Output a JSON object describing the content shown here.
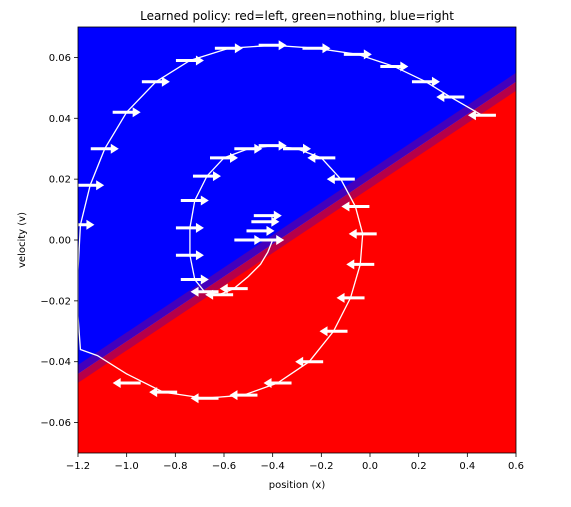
{
  "chart_data": {
    "type": "heatmap",
    "title": "Learned policy: red=left, green=nothing, blue=right",
    "xlabel": "position (x)",
    "ylabel": "velocity (v)",
    "xlim": [
      -1.2,
      0.6
    ],
    "ylim": [
      -0.07,
      0.07
    ],
    "x_ticks": [
      "−1.2",
      "−1.0",
      "−0.8",
      "−0.6",
      "−0.4",
      "−0.2",
      "0.0",
      "0.2",
      "0.4",
      "0.6"
    ],
    "y_ticks": [
      "−0.06",
      "−0.04",
      "−0.02",
      "0.00",
      "0.02",
      "0.04",
      "0.06"
    ],
    "grid": false,
    "colors": {
      "left": "#ff0000",
      "nothing": "#00ff00",
      "right": "#0000ff",
      "trajectory": "#ffffff"
    },
    "decision_boundary": {
      "description_points": [
        [
          -1.2,
          -0.044
        ],
        [
          0.6,
          0.052
        ]
      ],
      "left_action_region": "below",
      "right_action_region": "above"
    },
    "trajectory": [
      [
        -0.4,
        0.0
      ],
      [
        -0.42,
        -0.004
      ],
      [
        -0.45,
        -0.008
      ],
      [
        -0.5,
        -0.012
      ],
      [
        -0.56,
        -0.016
      ],
      [
        -0.62,
        -0.018
      ],
      [
        -0.68,
        -0.017
      ],
      [
        -0.72,
        -0.013
      ],
      [
        -0.74,
        -0.005
      ],
      [
        -0.74,
        0.004
      ],
      [
        -0.72,
        0.013
      ],
      [
        -0.67,
        0.021
      ],
      [
        -0.6,
        0.027
      ],
      [
        -0.5,
        0.03
      ],
      [
        -0.4,
        0.031
      ],
      [
        -0.3,
        0.03
      ],
      [
        -0.2,
        0.027
      ],
      [
        -0.12,
        0.02
      ],
      [
        -0.06,
        0.011
      ],
      [
        -0.03,
        0.002
      ],
      [
        -0.04,
        -0.008
      ],
      [
        -0.08,
        -0.019
      ],
      [
        -0.15,
        -0.03
      ],
      [
        -0.25,
        -0.04
      ],
      [
        -0.38,
        -0.047
      ],
      [
        -0.52,
        -0.051
      ],
      [
        -0.68,
        -0.052
      ],
      [
        -0.85,
        -0.05
      ],
      [
        -1.0,
        -0.044
      ],
      [
        -1.12,
        -0.038
      ],
      [
        -1.19,
        -0.036
      ],
      [
        -1.2,
        -0.025
      ],
      [
        -1.2,
        -0.01
      ],
      [
        -1.19,
        0.005
      ],
      [
        -1.15,
        0.018
      ],
      [
        -1.09,
        0.03
      ],
      [
        -1.0,
        0.042
      ],
      [
        -0.88,
        0.052
      ],
      [
        -0.74,
        0.059
      ],
      [
        -0.58,
        0.063
      ],
      [
        -0.4,
        0.064
      ],
      [
        -0.22,
        0.063
      ],
      [
        -0.05,
        0.061
      ],
      [
        0.1,
        0.057
      ],
      [
        0.23,
        0.052
      ],
      [
        0.33,
        0.047
      ],
      [
        0.46,
        0.041
      ]
    ],
    "arrows": [
      {
        "x": -0.5,
        "y": 0.0,
        "action": "right"
      },
      {
        "x": -0.56,
        "y": -0.016,
        "action": "left"
      },
      {
        "x": -0.62,
        "y": -0.018,
        "action": "left"
      },
      {
        "x": -0.68,
        "y": -0.017,
        "action": "left"
      },
      {
        "x": -0.72,
        "y": -0.013,
        "action": "right"
      },
      {
        "x": -0.74,
        "y": -0.005,
        "action": "right"
      },
      {
        "x": -0.74,
        "y": 0.004,
        "action": "right"
      },
      {
        "x": -0.72,
        "y": 0.013,
        "action": "right"
      },
      {
        "x": -0.67,
        "y": 0.021,
        "action": "right"
      },
      {
        "x": -0.6,
        "y": 0.027,
        "action": "right"
      },
      {
        "x": -0.5,
        "y": 0.03,
        "action": "right"
      },
      {
        "x": -0.4,
        "y": 0.031,
        "action": "right"
      },
      {
        "x": -0.3,
        "y": 0.03,
        "action": "right"
      },
      {
        "x": -0.2,
        "y": 0.027,
        "action": "left"
      },
      {
        "x": -0.12,
        "y": 0.02,
        "action": "left"
      },
      {
        "x": -0.06,
        "y": 0.011,
        "action": "left"
      },
      {
        "x": -0.03,
        "y": 0.002,
        "action": "left"
      },
      {
        "x": -0.04,
        "y": -0.008,
        "action": "left"
      },
      {
        "x": -0.08,
        "y": -0.019,
        "action": "left"
      },
      {
        "x": -0.15,
        "y": -0.03,
        "action": "left"
      },
      {
        "x": -0.25,
        "y": -0.04,
        "action": "left"
      },
      {
        "x": -0.38,
        "y": -0.047,
        "action": "left"
      },
      {
        "x": -0.52,
        "y": -0.051,
        "action": "left"
      },
      {
        "x": -0.68,
        "y": -0.052,
        "action": "left"
      },
      {
        "x": -0.85,
        "y": -0.05,
        "action": "left"
      },
      {
        "x": -1.0,
        "y": -0.047,
        "action": "left"
      },
      {
        "x": -1.19,
        "y": 0.005,
        "action": "right"
      },
      {
        "x": -1.15,
        "y": 0.018,
        "action": "right"
      },
      {
        "x": -1.09,
        "y": 0.03,
        "action": "right"
      },
      {
        "x": -1.0,
        "y": 0.042,
        "action": "right"
      },
      {
        "x": -0.88,
        "y": 0.052,
        "action": "right"
      },
      {
        "x": -0.74,
        "y": 0.059,
        "action": "right"
      },
      {
        "x": -0.58,
        "y": 0.063,
        "action": "right"
      },
      {
        "x": -0.4,
        "y": 0.064,
        "action": "right"
      },
      {
        "x": -0.22,
        "y": 0.063,
        "action": "right"
      },
      {
        "x": -0.05,
        "y": 0.061,
        "action": "right"
      },
      {
        "x": 0.1,
        "y": 0.057,
        "action": "right"
      },
      {
        "x": 0.23,
        "y": 0.052,
        "action": "right"
      },
      {
        "x": 0.33,
        "y": 0.047,
        "action": "left"
      },
      {
        "x": 0.46,
        "y": 0.041,
        "action": "left"
      },
      {
        "x": -0.45,
        "y": 0.003,
        "action": "right"
      },
      {
        "x": -0.43,
        "y": 0.006,
        "action": "right"
      },
      {
        "x": -0.42,
        "y": 0.008,
        "action": "right"
      },
      {
        "x": -0.41,
        "y": 0.0,
        "action": "right"
      }
    ]
  }
}
